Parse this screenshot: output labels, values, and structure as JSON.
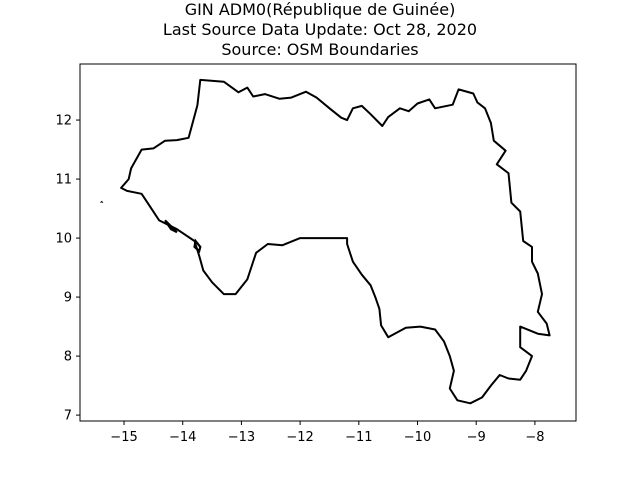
{
  "title": {
    "line1": "GIN ADM0(République de Guinée)",
    "line2": "Last Source Data Update: Oct 28, 2020",
    "line3": "Source: OSM Boundaries"
  },
  "map": {
    "country": "Guinea",
    "outline_color": "#000000",
    "background": "#ffffff",
    "xlim": [
      -15.75,
      -7.3
    ],
    "ylim": [
      6.9,
      12.95
    ],
    "x_ticks": [
      {
        "value": -15,
        "label": "−15"
      },
      {
        "value": -14,
        "label": "−14"
      },
      {
        "value": -13,
        "label": "−13"
      },
      {
        "value": -12,
        "label": "−12"
      },
      {
        "value": -11,
        "label": "−11"
      },
      {
        "value": -10,
        "label": "−10"
      },
      {
        "value": -9,
        "label": "−9"
      },
      {
        "value": -8,
        "label": "−8"
      }
    ],
    "y_ticks": [
      {
        "value": 7,
        "label": "7"
      },
      {
        "value": 8,
        "label": "8"
      },
      {
        "value": 9,
        "label": "9"
      },
      {
        "value": 10,
        "label": "10"
      },
      {
        "value": 11,
        "label": "11"
      },
      {
        "value": 12,
        "label": "12"
      }
    ],
    "boundary_lonlat": [
      [
        -15.05,
        10.85
      ],
      [
        -14.92,
        11.0
      ],
      [
        -14.88,
        11.18
      ],
      [
        -14.7,
        11.5
      ],
      [
        -14.5,
        11.52
      ],
      [
        -14.3,
        11.65
      ],
      [
        -14.1,
        11.66
      ],
      [
        -13.9,
        11.7
      ],
      [
        -13.75,
        12.25
      ],
      [
        -13.7,
        12.68
      ],
      [
        -13.3,
        12.65
      ],
      [
        -13.05,
        12.47
      ],
      [
        -12.9,
        12.55
      ],
      [
        -12.8,
        12.4
      ],
      [
        -12.6,
        12.44
      ],
      [
        -12.35,
        12.36
      ],
      [
        -12.15,
        12.38
      ],
      [
        -11.9,
        12.48
      ],
      [
        -11.72,
        12.38
      ],
      [
        -11.5,
        12.2
      ],
      [
        -11.3,
        12.04
      ],
      [
        -11.2,
        12.0
      ],
      [
        -11.1,
        12.2
      ],
      [
        -10.95,
        12.24
      ],
      [
        -10.8,
        12.1
      ],
      [
        -10.6,
        11.9
      ],
      [
        -10.5,
        12.05
      ],
      [
        -10.3,
        12.2
      ],
      [
        -10.15,
        12.15
      ],
      [
        -10.0,
        12.28
      ],
      [
        -9.8,
        12.35
      ],
      [
        -9.7,
        12.2
      ],
      [
        -9.4,
        12.26
      ],
      [
        -9.3,
        12.52
      ],
      [
        -9.05,
        12.45
      ],
      [
        -8.98,
        12.3
      ],
      [
        -8.85,
        12.2
      ],
      [
        -8.75,
        11.95
      ],
      [
        -8.7,
        11.65
      ],
      [
        -8.5,
        11.48
      ],
      [
        -8.65,
        11.25
      ],
      [
        -8.45,
        11.1
      ],
      [
        -8.4,
        10.6
      ],
      [
        -8.25,
        10.45
      ],
      [
        -8.2,
        9.95
      ],
      [
        -8.05,
        9.85
      ],
      [
        -8.05,
        9.6
      ],
      [
        -7.95,
        9.4
      ],
      [
        -7.88,
        9.05
      ],
      [
        -7.95,
        8.75
      ],
      [
        -7.8,
        8.55
      ],
      [
        -7.75,
        8.35
      ],
      [
        -7.95,
        8.38
      ],
      [
        -8.25,
        8.5
      ],
      [
        -8.25,
        8.15
      ],
      [
        -8.05,
        8.0
      ],
      [
        -8.15,
        7.75
      ],
      [
        -8.25,
        7.6
      ],
      [
        -8.45,
        7.62
      ],
      [
        -8.6,
        7.68
      ],
      [
        -8.75,
        7.5
      ],
      [
        -8.9,
        7.3
      ],
      [
        -9.1,
        7.2
      ],
      [
        -9.32,
        7.25
      ],
      [
        -9.45,
        7.45
      ],
      [
        -9.38,
        7.75
      ],
      [
        -9.45,
        8.0
      ],
      [
        -9.55,
        8.25
      ],
      [
        -9.7,
        8.45
      ],
      [
        -9.95,
        8.5
      ],
      [
        -10.2,
        8.48
      ],
      [
        -10.5,
        8.32
      ],
      [
        -10.62,
        8.52
      ],
      [
        -10.65,
        8.8
      ],
      [
        -10.72,
        9.0
      ],
      [
        -10.8,
        9.2
      ],
      [
        -10.95,
        9.38
      ],
      [
        -11.1,
        9.6
      ],
      [
        -11.2,
        9.9
      ],
      [
        -11.2,
        10.0
      ],
      [
        -12.0,
        10.0
      ],
      [
        -12.3,
        9.88
      ],
      [
        -12.55,
        9.9
      ],
      [
        -12.75,
        9.75
      ],
      [
        -12.9,
        9.3
      ],
      [
        -13.1,
        9.05
      ],
      [
        -13.3,
        9.05
      ],
      [
        -13.5,
        9.25
      ],
      [
        -13.65,
        9.45
      ],
      [
        -13.72,
        9.7
      ],
      [
        -13.8,
        9.95
      ],
      [
        -14.1,
        10.15
      ],
      [
        -14.4,
        10.3
      ],
      [
        -14.6,
        10.6
      ],
      [
        -14.7,
        10.75
      ],
      [
        -14.95,
        10.8
      ],
      [
        -15.05,
        10.85
      ]
    ],
    "islands_lonlat": [
      [
        [
          -15.4,
          10.6
        ],
        [
          -15.38,
          10.62
        ],
        [
          -15.36,
          10.6
        ]
      ],
      [
        [
          -14.3,
          10.3
        ],
        [
          -14.2,
          10.2
        ],
        [
          -14.1,
          10.1
        ],
        [
          -14.2,
          10.15
        ],
        [
          -14.3,
          10.3
        ]
      ],
      [
        [
          -13.78,
          9.95
        ],
        [
          -13.7,
          9.85
        ],
        [
          -13.72,
          9.78
        ],
        [
          -13.8,
          9.85
        ],
        [
          -13.78,
          9.95
        ]
      ]
    ]
  }
}
